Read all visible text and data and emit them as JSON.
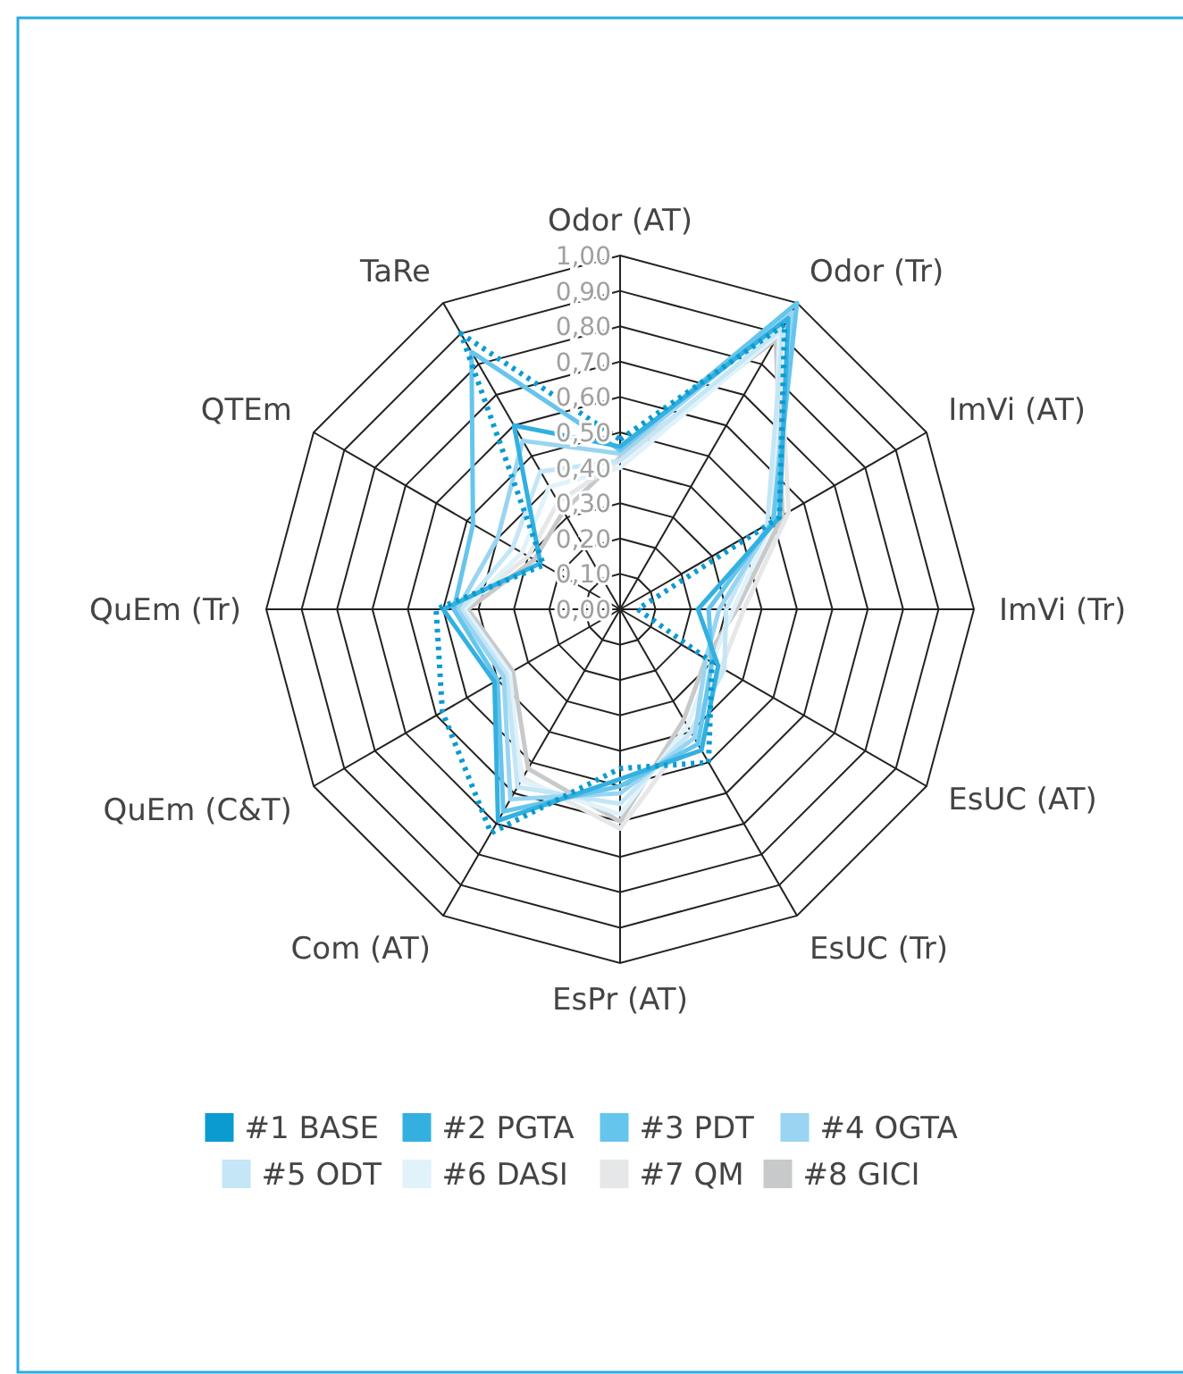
{
  "chart_data": {
    "type": "radar",
    "categories": [
      "Odor (AT)",
      "Odor (Tr)",
      "ImVi (AT)",
      "ImVi (Tr)",
      "EsUC (AT)",
      "EsUC (Tr)",
      "EsPr (AT)",
      "Com (AT)",
      "QuEm (C&T)",
      "QuEm (Tr)",
      "QTEm",
      "TaRe"
    ],
    "series": [
      {
        "name": "#1 BASE",
        "color": "#0b9bd0",
        "line_style": "dotted",
        "values": [
          0.48,
          0.93,
          0.52,
          0.05,
          0.3,
          0.5,
          0.45,
          0.73,
          0.58,
          0.52,
          0.25,
          0.9
        ]
      },
      {
        "name": "#2 PGTA",
        "color": "#33b0e0",
        "values": [
          0.46,
          0.95,
          0.52,
          0.22,
          0.32,
          0.46,
          0.48,
          0.69,
          0.41,
          0.5,
          0.26,
          0.6
        ]
      },
      {
        "name": "#3 PDT",
        "color": "#66c5ec",
        "values": [
          0.45,
          1.0,
          0.5,
          0.25,
          0.3,
          0.44,
          0.5,
          0.66,
          0.4,
          0.47,
          0.48,
          0.84
        ]
      },
      {
        "name": "#4 OGTA",
        "color": "#99d5f2",
        "values": [
          0.44,
          0.97,
          0.5,
          0.28,
          0.28,
          0.42,
          0.52,
          0.62,
          0.38,
          0.46,
          0.4,
          0.55
        ]
      },
      {
        "name": "#5 ODT",
        "color": "#c4e6f7",
        "values": [
          0.42,
          0.92,
          0.48,
          0.3,
          0.34,
          0.4,
          0.55,
          0.58,
          0.37,
          0.45,
          0.35,
          0.45
        ]
      },
      {
        "name": "#6 DASI",
        "color": "#e0f2fa",
        "values": [
          0.4,
          0.9,
          0.5,
          0.32,
          0.3,
          0.38,
          0.58,
          0.56,
          0.36,
          0.44,
          0.32,
          0.4
        ]
      },
      {
        "name": "#7 QM",
        "color": "#e6e7e8",
        "values": [
          0.42,
          0.9,
          0.55,
          0.35,
          0.33,
          0.4,
          0.62,
          0.55,
          0.38,
          0.45,
          0.3,
          0.35
        ]
      },
      {
        "name": "#8 GICI",
        "color": "#c8c9ca",
        "values": [
          0.43,
          0.88,
          0.53,
          0.33,
          0.28,
          0.36,
          0.6,
          0.52,
          0.35,
          0.43,
          0.28,
          0.32
        ]
      }
    ],
    "ylim": [
      0,
      1
    ],
    "yticks": [
      {
        "value": 0,
        "label": "0,00"
      },
      {
        "value": 0.1,
        "label": "0,10"
      },
      {
        "value": 0.2,
        "label": "0,20"
      },
      {
        "value": 0.3,
        "label": "0,30"
      },
      {
        "value": 0.4,
        "label": "0,40"
      },
      {
        "value": 0.5,
        "label": "0,50"
      },
      {
        "value": 0.6,
        "label": "0,60"
      },
      {
        "value": 0.7,
        "label": "0,70"
      },
      {
        "value": 0.8,
        "label": "0,80"
      },
      {
        "value": 0.9,
        "label": "0,90"
      },
      {
        "value": 1,
        "label": "1,00"
      }
    ],
    "grid": true,
    "legend": "bottom",
    "marker": "none"
  }
}
